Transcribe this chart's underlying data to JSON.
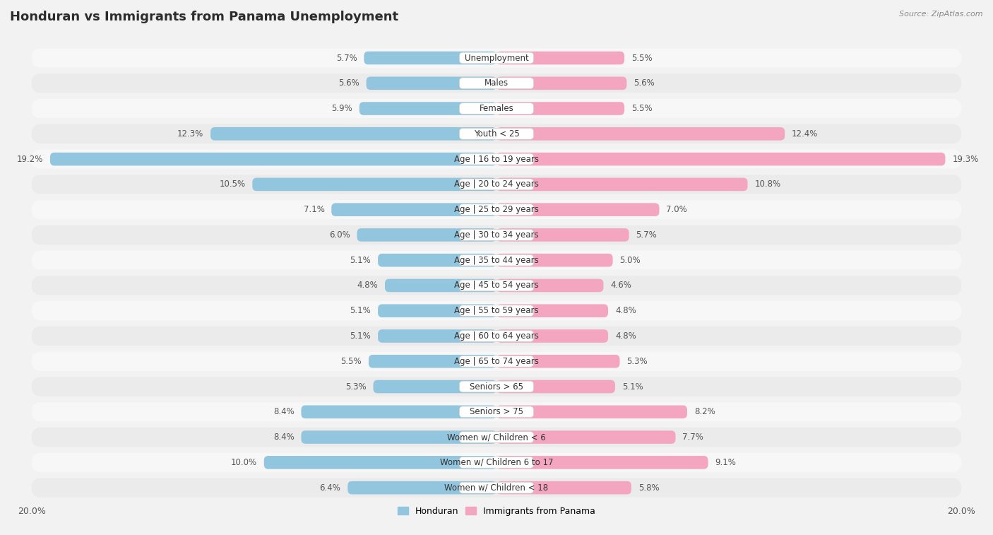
{
  "title": "Honduran vs Immigrants from Panama Unemployment",
  "source": "Source: ZipAtlas.com",
  "categories": [
    "Unemployment",
    "Males",
    "Females",
    "Youth < 25",
    "Age | 16 to 19 years",
    "Age | 20 to 24 years",
    "Age | 25 to 29 years",
    "Age | 30 to 34 years",
    "Age | 35 to 44 years",
    "Age | 45 to 54 years",
    "Age | 55 to 59 years",
    "Age | 60 to 64 years",
    "Age | 65 to 74 years",
    "Seniors > 65",
    "Seniors > 75",
    "Women w/ Children < 6",
    "Women w/ Children 6 to 17",
    "Women w/ Children < 18"
  ],
  "honduran": [
    5.7,
    5.6,
    5.9,
    12.3,
    19.2,
    10.5,
    7.1,
    6.0,
    5.1,
    4.8,
    5.1,
    5.1,
    5.5,
    5.3,
    8.4,
    8.4,
    10.0,
    6.4
  ],
  "panama": [
    5.5,
    5.6,
    5.5,
    12.4,
    19.3,
    10.8,
    7.0,
    5.7,
    5.0,
    4.6,
    4.8,
    4.8,
    5.3,
    5.1,
    8.2,
    7.7,
    9.1,
    5.8
  ],
  "honduran_color": "#92c5de",
  "panama_color": "#f4a6c0",
  "background_color": "#f2f2f2",
  "row_bg_light": "#f7f7f7",
  "row_bg_dark": "#ebebeb",
  "max_value": 20.0,
  "bar_height": 0.52,
  "title_fontsize": 13,
  "label_fontsize": 8.5,
  "category_fontsize": 8.5,
  "legend_fontsize": 9
}
